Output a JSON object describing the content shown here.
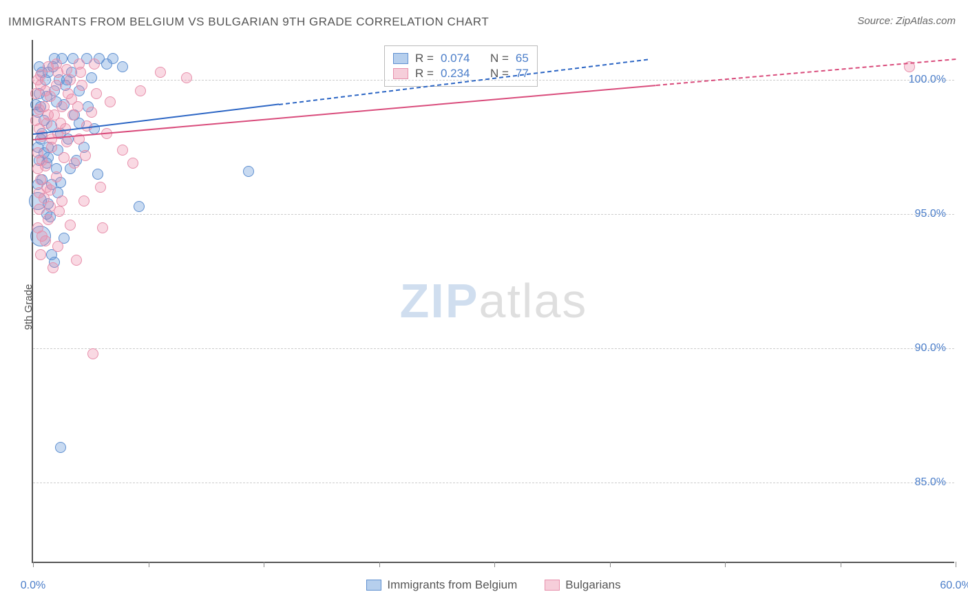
{
  "title": "IMMIGRANTS FROM BELGIUM VS BULGARIAN 9TH GRADE CORRELATION CHART",
  "source_label": "Source:",
  "source_value": "ZipAtlas.com",
  "y_axis_label": "9th Grade",
  "watermark_zip": "ZIP",
  "watermark_atlas": "atlas",
  "chart": {
    "type": "scatter",
    "xlim": [
      0.0,
      60.0
    ],
    "ylim": [
      82.0,
      101.5
    ],
    "background_color": "#ffffff",
    "grid_color": "#cccccc",
    "axis_color": "#555555",
    "tick_label_color": "#4a7dc9",
    "y_ticks": [
      85.0,
      90.0,
      95.0,
      100.0
    ],
    "y_tick_labels": [
      "85.0%",
      "90.0%",
      "95.0%",
      "100.0%"
    ],
    "x_ticks": [
      0.0,
      7.5,
      15.0,
      22.5,
      30.0,
      37.5,
      45.0,
      52.5,
      60.0
    ],
    "x_tick_labels_shown": {
      "0": "0.0%",
      "60": "60.0%"
    },
    "marker_default_radius": 8,
    "series": [
      {
        "id": "belgium",
        "label": "Immigrants from Belgium",
        "color_fill": "rgba(96,150,214,0.35)",
        "color_stroke": "#5e8fd0",
        "R": 0.074,
        "N": 65,
        "trend": {
          "x1": 0.0,
          "y1": 98.0,
          "x2": 40.0,
          "y2": 100.8,
          "solid_until_x": 16.0,
          "color": "#2b65c4"
        },
        "points": [
          {
            "x": 1.4,
            "y": 100.8
          },
          {
            "x": 1.9,
            "y": 100.8
          },
          {
            "x": 2.6,
            "y": 100.8
          },
          {
            "x": 3.5,
            "y": 100.8
          },
          {
            "x": 4.3,
            "y": 100.8
          },
          {
            "x": 5.2,
            "y": 100.8
          },
          {
            "x": 0.6,
            "y": 100.3
          },
          {
            "x": 1.0,
            "y": 100.3
          },
          {
            "x": 1.7,
            "y": 100.0
          },
          {
            "x": 2.2,
            "y": 100.0
          },
          {
            "x": 0.4,
            "y": 99.5
          },
          {
            "x": 0.9,
            "y": 99.4
          },
          {
            "x": 1.5,
            "y": 99.2
          },
          {
            "x": 2.0,
            "y": 99.1
          },
          {
            "x": 2.7,
            "y": 98.7
          },
          {
            "x": 0.3,
            "y": 98.8
          },
          {
            "x": 0.7,
            "y": 98.5
          },
          {
            "x": 1.2,
            "y": 98.3
          },
          {
            "x": 1.8,
            "y": 98.0
          },
          {
            "x": 0.5,
            "y": 97.8
          },
          {
            "x": 1.0,
            "y": 97.5
          },
          {
            "x": 1.6,
            "y": 97.4
          },
          {
            "x": 3.0,
            "y": 98.4
          },
          {
            "x": 0.4,
            "y": 97.0
          },
          {
            "x": 0.9,
            "y": 96.9
          },
          {
            "x": 1.5,
            "y": 96.7
          },
          {
            "x": 2.4,
            "y": 96.7
          },
          {
            "x": 0.6,
            "y": 96.3
          },
          {
            "x": 1.2,
            "y": 96.1
          },
          {
            "x": 4.2,
            "y": 96.5
          },
          {
            "x": 0.3,
            "y": 95.5,
            "r": 13
          },
          {
            "x": 1.0,
            "y": 95.4
          },
          {
            "x": 6.9,
            "y": 95.3
          },
          {
            "x": 0.5,
            "y": 94.2,
            "r": 15
          },
          {
            "x": 1.2,
            "y": 93.5
          },
          {
            "x": 14.0,
            "y": 96.6
          },
          {
            "x": 1.8,
            "y": 86.3
          },
          {
            "x": 2.1,
            "y": 99.8
          },
          {
            "x": 3.0,
            "y": 99.6
          },
          {
            "x": 3.8,
            "y": 100.1
          },
          {
            "x": 0.4,
            "y": 100.5
          },
          {
            "x": 0.8,
            "y": 100.0
          },
          {
            "x": 1.4,
            "y": 99.6
          },
          {
            "x": 0.6,
            "y": 98.0
          },
          {
            "x": 1.0,
            "y": 97.1
          },
          {
            "x": 1.8,
            "y": 96.2
          },
          {
            "x": 2.3,
            "y": 97.8
          },
          {
            "x": 2.8,
            "y": 97.0
          },
          {
            "x": 3.6,
            "y": 99.0
          },
          {
            "x": 0.3,
            "y": 96.1
          },
          {
            "x": 1.1,
            "y": 94.9
          },
          {
            "x": 0.5,
            "y": 99.0
          },
          {
            "x": 1.3,
            "y": 100.5
          },
          {
            "x": 2.5,
            "y": 100.3
          },
          {
            "x": 4.8,
            "y": 100.6
          },
          {
            "x": 5.8,
            "y": 100.5
          },
          {
            "x": 0.2,
            "y": 99.1
          },
          {
            "x": 0.7,
            "y": 97.3
          },
          {
            "x": 1.6,
            "y": 95.8
          },
          {
            "x": 2.0,
            "y": 94.1
          },
          {
            "x": 1.4,
            "y": 93.2
          },
          {
            "x": 0.9,
            "y": 95.0
          },
          {
            "x": 3.3,
            "y": 97.5
          },
          {
            "x": 4.0,
            "y": 98.2
          },
          {
            "x": 0.3,
            "y": 97.5
          }
        ]
      },
      {
        "id": "bulgarians",
        "label": "Bulgarians",
        "color_fill": "rgba(236,138,168,0.32)",
        "color_stroke": "#e78fab",
        "R": 0.234,
        "N": 77,
        "trend": {
          "x1": 0.0,
          "y1": 97.8,
          "x2": 60.0,
          "y2": 100.8,
          "solid_until_x": 40.5,
          "color": "#d94b7b"
        },
        "points": [
          {
            "x": 57.0,
            "y": 100.5
          },
          {
            "x": 8.3,
            "y": 100.3
          },
          {
            "x": 10.0,
            "y": 100.1
          },
          {
            "x": 7.0,
            "y": 99.6
          },
          {
            "x": 1.0,
            "y": 100.5
          },
          {
            "x": 1.6,
            "y": 100.3
          },
          {
            "x": 2.4,
            "y": 100.0
          },
          {
            "x": 3.2,
            "y": 99.8
          },
          {
            "x": 4.1,
            "y": 99.5
          },
          {
            "x": 0.5,
            "y": 99.8
          },
          {
            "x": 1.1,
            "y": 99.4
          },
          {
            "x": 1.9,
            "y": 99.0
          },
          {
            "x": 2.6,
            "y": 98.7
          },
          {
            "x": 3.5,
            "y": 98.3
          },
          {
            "x": 0.4,
            "y": 98.9
          },
          {
            "x": 0.9,
            "y": 98.4
          },
          {
            "x": 1.6,
            "y": 98.0
          },
          {
            "x": 2.2,
            "y": 97.7
          },
          {
            "x": 0.6,
            "y": 97.9
          },
          {
            "x": 1.2,
            "y": 97.5
          },
          {
            "x": 2.0,
            "y": 97.1
          },
          {
            "x": 3.0,
            "y": 97.8
          },
          {
            "x": 0.3,
            "y": 97.3
          },
          {
            "x": 0.8,
            "y": 96.8
          },
          {
            "x": 1.5,
            "y": 96.4
          },
          {
            "x": 2.7,
            "y": 96.9
          },
          {
            "x": 0.5,
            "y": 96.3
          },
          {
            "x": 1.1,
            "y": 95.9
          },
          {
            "x": 1.9,
            "y": 95.5
          },
          {
            "x": 0.4,
            "y": 95.2
          },
          {
            "x": 1.0,
            "y": 94.8
          },
          {
            "x": 4.5,
            "y": 94.5
          },
          {
            "x": 0.6,
            "y": 94.2
          },
          {
            "x": 1.6,
            "y": 93.8
          },
          {
            "x": 2.8,
            "y": 93.3
          },
          {
            "x": 3.9,
            "y": 89.8
          },
          {
            "x": 4.8,
            "y": 98.0
          },
          {
            "x": 5.8,
            "y": 97.4
          },
          {
            "x": 6.5,
            "y": 96.9
          },
          {
            "x": 0.3,
            "y": 100.0
          },
          {
            "x": 0.8,
            "y": 99.6
          },
          {
            "x": 1.5,
            "y": 100.6
          },
          {
            "x": 2.2,
            "y": 100.4
          },
          {
            "x": 3.0,
            "y": 100.6
          },
          {
            "x": 4.0,
            "y": 100.6
          },
          {
            "x": 0.4,
            "y": 98.2
          },
          {
            "x": 1.0,
            "y": 98.7
          },
          {
            "x": 1.8,
            "y": 98.4
          },
          {
            "x": 2.5,
            "y": 99.3
          },
          {
            "x": 3.4,
            "y": 97.2
          },
          {
            "x": 4.4,
            "y": 96.0
          },
          {
            "x": 0.3,
            "y": 96.7
          },
          {
            "x": 0.9,
            "y": 96.0
          },
          {
            "x": 1.7,
            "y": 95.1
          },
          {
            "x": 2.4,
            "y": 94.6
          },
          {
            "x": 3.3,
            "y": 95.5
          },
          {
            "x": 0.5,
            "y": 93.5
          },
          {
            "x": 1.3,
            "y": 93.0
          },
          {
            "x": 0.7,
            "y": 99.0
          },
          {
            "x": 1.4,
            "y": 98.7
          },
          {
            "x": 2.1,
            "y": 98.2
          },
          {
            "x": 2.9,
            "y": 99.0
          },
          {
            "x": 3.8,
            "y": 98.8
          },
          {
            "x": 5.0,
            "y": 99.2
          },
          {
            "x": 0.2,
            "y": 98.5
          },
          {
            "x": 0.6,
            "y": 97.0
          },
          {
            "x": 1.2,
            "y": 97.8
          },
          {
            "x": 0.4,
            "y": 95.8
          },
          {
            "x": 1.1,
            "y": 95.3
          },
          {
            "x": 0.3,
            "y": 94.5
          },
          {
            "x": 0.8,
            "y": 94.0
          },
          {
            "x": 1.5,
            "y": 99.8
          },
          {
            "x": 2.3,
            "y": 99.5
          },
          {
            "x": 3.1,
            "y": 100.3
          },
          {
            "x": 0.5,
            "y": 100.2
          },
          {
            "x": 0.2,
            "y": 99.5
          },
          {
            "x": 0.7,
            "y": 95.6
          }
        ]
      }
    ],
    "stat_box_R_label": "R =",
    "stat_box_N_label": "N ="
  },
  "legend": {
    "belgium": "Immigrants from Belgium",
    "bulgarians": "Bulgarians"
  }
}
